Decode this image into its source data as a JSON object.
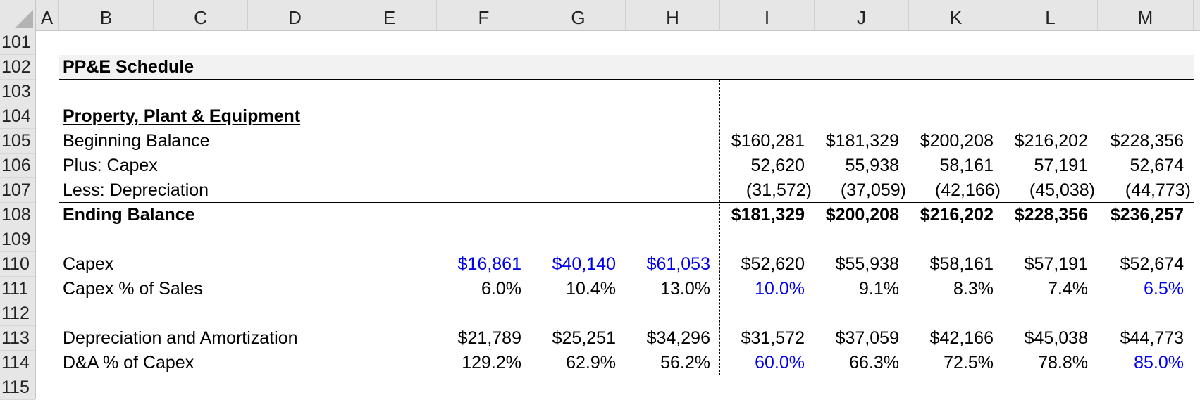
{
  "columns": [
    "A",
    "B",
    "C",
    "D",
    "E",
    "F",
    "G",
    "H",
    "I",
    "J",
    "K",
    "L",
    "M"
  ],
  "row_numbers": [
    "101",
    "102",
    "103",
    "104",
    "105",
    "106",
    "107",
    "108",
    "109",
    "110",
    "111",
    "112",
    "113",
    "114",
    "115"
  ],
  "section_title": "PP&E Schedule",
  "ppe": {
    "heading": "Property, Plant & Equipment",
    "beginning_balance": {
      "label": "Beginning Balance",
      "I": "$160,281",
      "J": "$181,329",
      "K": "$200,208",
      "L": "$216,202",
      "M": "$228,356"
    },
    "plus_capex": {
      "label": "Plus: Capex",
      "I": "52,620",
      "J": "55,938",
      "K": "58,161",
      "L": "57,191",
      "M": "52,674"
    },
    "less_depreciation": {
      "label": "Less: Depreciation",
      "I": "(31,572)",
      "J": "(37,059)",
      "K": "(42,166)",
      "L": "(45,038)",
      "M": "(44,773)"
    },
    "ending_balance": {
      "label": "Ending Balance",
      "I": "$181,329",
      "J": "$200,208",
      "K": "$216,202",
      "L": "$228,356",
      "M": "$236,257"
    }
  },
  "capex": {
    "label": "Capex",
    "F": "$16,861",
    "G": "$40,140",
    "H": "$61,053",
    "I": "$52,620",
    "J": "$55,938",
    "K": "$58,161",
    "L": "$57,191",
    "M": "$52,674"
  },
  "capex_pct_sales": {
    "label": "Capex % of Sales",
    "F": "6.0%",
    "G": "10.4%",
    "H": "13.0%",
    "I": "10.0%",
    "J": "9.1%",
    "K": "8.3%",
    "L": "7.4%",
    "M": "6.5%"
  },
  "da": {
    "label": "Depreciation and Amortization",
    "F": "$21,789",
    "G": "$25,251",
    "H": "$34,296",
    "I": "$31,572",
    "J": "$37,059",
    "K": "$42,166",
    "L": "$45,038",
    "M": "$44,773"
  },
  "da_pct_capex": {
    "label": "D&A % of Capex",
    "F": "129.2%",
    "G": "62.9%",
    "H": "56.2%",
    "I": "60.0%",
    "J": "66.3%",
    "K": "72.5%",
    "L": "78.8%",
    "M": "85.0%"
  },
  "colors": {
    "input_blue": "#0000ee",
    "header_gray": "#e6e6e6",
    "band_gray": "#f2f2f2"
  }
}
